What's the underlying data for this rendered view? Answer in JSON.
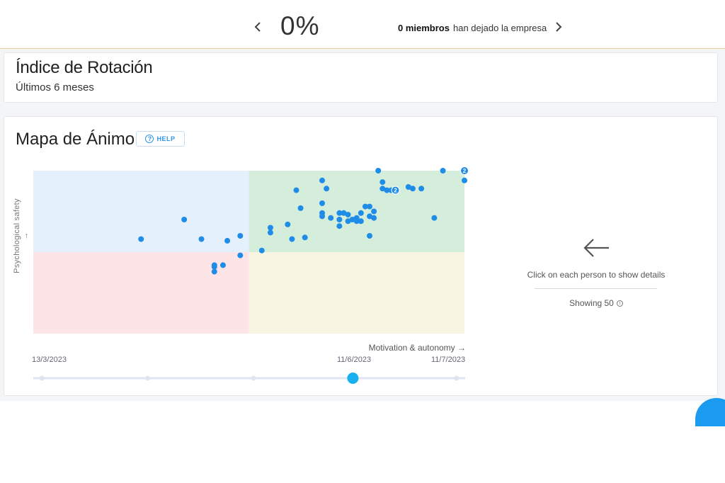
{
  "turnover": {
    "title": "Índice de Rotación",
    "subtitle": "Últimos 6 meses",
    "value": "0%",
    "members": "0 miembros",
    "left_text": "han dejado la empresa",
    "prev_icon": "chevron-left-icon",
    "next_icon": "chevron-right-icon"
  },
  "mood_map": {
    "title": "Mapa de Ánimo",
    "help_label": "HELP",
    "help_icon": "question-circle-icon",
    "quadrant_colors": {
      "top_left": "#e4f1fc",
      "top_right": "#d5eedb",
      "bottom_left": "#fde4e6",
      "bottom_right": "#f8f6e2"
    },
    "point_color": "#1f8de8",
    "chart_data": {
      "type": "scatter",
      "xlabel": "Motivation & autonomy →",
      "ylabel": "Psychological safety →",
      "xlim": [
        0,
        100
      ],
      "ylim": [
        0,
        100
      ],
      "divider": {
        "x": 50,
        "y": 50
      },
      "points": [
        {
          "x": 25,
          "y": 58
        },
        {
          "x": 35,
          "y": 70
        },
        {
          "x": 39,
          "y": 58
        },
        {
          "x": 45,
          "y": 57
        },
        {
          "x": 48,
          "y": 60
        },
        {
          "x": 48,
          "y": 48
        },
        {
          "x": 42,
          "y": 42
        },
        {
          "x": 44,
          "y": 42
        },
        {
          "x": 42,
          "y": 41
        },
        {
          "x": 42,
          "y": 38
        },
        {
          "x": 53,
          "y": 51
        },
        {
          "x": 55,
          "y": 62
        },
        {
          "x": 55,
          "y": 65
        },
        {
          "x": 59,
          "y": 67
        },
        {
          "x": 60,
          "y": 58
        },
        {
          "x": 62,
          "y": 77
        },
        {
          "x": 63,
          "y": 59
        },
        {
          "x": 61,
          "y": 88
        },
        {
          "x": 67,
          "y": 94
        },
        {
          "x": 68,
          "y": 89
        },
        {
          "x": 67,
          "y": 80
        },
        {
          "x": 67,
          "y": 74
        },
        {
          "x": 67,
          "y": 72
        },
        {
          "x": 69,
          "y": 71
        },
        {
          "x": 71,
          "y": 74
        },
        {
          "x": 71,
          "y": 70
        },
        {
          "x": 71,
          "y": 66
        },
        {
          "x": 72,
          "y": 74
        },
        {
          "x": 73,
          "y": 73
        },
        {
          "x": 73,
          "y": 69
        },
        {
          "x": 74,
          "y": 70
        },
        {
          "x": 75,
          "y": 71
        },
        {
          "x": 75,
          "y": 69
        },
        {
          "x": 76,
          "y": 74
        },
        {
          "x": 76,
          "y": 69
        },
        {
          "x": 78,
          "y": 60
        },
        {
          "x": 77,
          "y": 78
        },
        {
          "x": 78,
          "y": 78
        },
        {
          "x": 79,
          "y": 75
        },
        {
          "x": 78,
          "y": 72
        },
        {
          "x": 80,
          "y": 100
        },
        {
          "x": 79,
          "y": 71
        },
        {
          "x": 81,
          "y": 93
        },
        {
          "x": 81,
          "y": 89
        },
        {
          "x": 82,
          "y": 88
        },
        {
          "x": 83,
          "y": 88
        },
        {
          "x": 84,
          "y": 88,
          "label": "2"
        },
        {
          "x": 87,
          "y": 90
        },
        {
          "x": 88,
          "y": 89
        },
        {
          "x": 90,
          "y": 89
        },
        {
          "x": 93,
          "y": 71
        },
        {
          "x": 95,
          "y": 100
        },
        {
          "x": 100,
          "y": 100,
          "label": "2"
        },
        {
          "x": 100,
          "y": 94
        }
      ]
    },
    "timeline": {
      "start_date": "13/3/2023",
      "selected_date": "11/6/2023",
      "end_date": "11/7/2023",
      "selected_fraction": 0.74,
      "step_fractions": [
        0.02,
        0.265,
        0.51,
        0.74,
        0.98
      ]
    },
    "side_panel": {
      "arrow_icon": "arrow-left-icon",
      "hint": "Click on each person to show details",
      "showing": "Showing 50",
      "info_icon": "info-icon"
    }
  }
}
